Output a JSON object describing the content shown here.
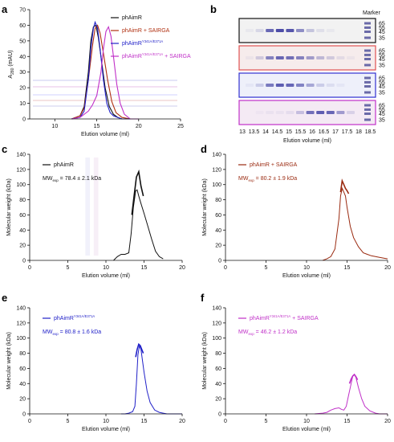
{
  "panel_letters": [
    "a",
    "b",
    "c",
    "d",
    "e",
    "f"
  ],
  "chart_data": [
    {
      "panel": "a",
      "type": "line",
      "xlabel": "Elution volume (ml)",
      "ylabel": "A280 (mAU)",
      "ylabel_main": "A",
      "ylabel_sub": "280",
      "ylabel_rest": " (mAU)",
      "xlim": [
        7,
        25
      ],
      "ylim": [
        0,
        70
      ],
      "xticks": [
        10,
        15,
        20,
        25
      ],
      "yticks": [
        0,
        10,
        20,
        30,
        40,
        50,
        60,
        70
      ],
      "legend": [
        {
          "main": "phAimR",
          "sup": "",
          "rest": "",
          "color": "#111111"
        },
        {
          "main": "phAimR + SAIRGA",
          "sup": "",
          "rest": "",
          "color": "#b03010"
        },
        {
          "main": "phAimR",
          "sup": "Y341A/E371A",
          "rest": "",
          "color": "#2020c8"
        },
        {
          "main": "phAimR",
          "sup": "Y341A/E371A",
          "rest": " + SAIRGA",
          "color": "#c030c8"
        }
      ],
      "series": [
        {
          "color": "#111111",
          "x": [
            12,
            13,
            13.5,
            14,
            14.3,
            14.6,
            14.9,
            15.2,
            15.5,
            16,
            16.5,
            17,
            17.5,
            18,
            19,
            20
          ],
          "y": [
            0,
            2,
            8,
            30,
            50,
            59,
            60,
            52,
            40,
            20,
            8,
            3,
            1,
            0,
            0,
            0
          ]
        },
        {
          "color": "#b03010",
          "x": [
            12,
            13,
            13.5,
            14,
            14.5,
            14.8,
            15.1,
            15.4,
            15.8,
            16.3,
            16.8,
            17.3,
            18,
            19,
            20
          ],
          "y": [
            0,
            2,
            7,
            25,
            47,
            58,
            60,
            55,
            42,
            25,
            11,
            4,
            1,
            0,
            0
          ]
        },
        {
          "color": "#2020c8",
          "x": [
            12,
            13,
            13.5,
            14,
            14.3,
            14.6,
            14.8,
            15.1,
            15.4,
            15.8,
            16.2,
            16.6,
            17,
            17.5,
            18,
            19,
            20
          ],
          "y": [
            0,
            1,
            5,
            25,
            45,
            58,
            62,
            58,
            45,
            25,
            10,
            4,
            2,
            1,
            0,
            0,
            0
          ]
        },
        {
          "color": "#c030c8",
          "x": [
            12,
            13,
            13.5,
            14,
            14.5,
            15,
            15.5,
            15.8,
            16.1,
            16.4,
            16.7,
            17,
            17.4,
            17.8,
            18.3,
            19,
            20
          ],
          "y": [
            0,
            1,
            3,
            5,
            9,
            15,
            30,
            45,
            56,
            59,
            53,
            40,
            22,
            10,
            3,
            0,
            0
          ]
        }
      ]
    },
    {
      "panel": "b",
      "type": "table",
      "marker_label": "Marker",
      "marker_kda": [
        "65",
        "55",
        "45",
        "35"
      ],
      "xlabel": "Elution volume (ml)",
      "lanes": [
        "13",
        "13.5",
        "14",
        "14.5",
        "15",
        "15.5",
        "16",
        "16.5",
        "17",
        "17.5",
        "18",
        "18.5"
      ],
      "gels": [
        {
          "border": "#111111",
          "intensity": [
            0.05,
            0.15,
            0.75,
            0.9,
            0.85,
            0.55,
            0.25,
            0.1,
            0.05,
            0,
            0,
            0
          ]
        },
        {
          "border": "#e05050",
          "intensity": [
            0.05,
            0.2,
            0.6,
            0.75,
            0.7,
            0.6,
            0.45,
            0.3,
            0.2,
            0.1,
            0.05,
            0
          ]
        },
        {
          "border": "#3030d0",
          "intensity": [
            0.05,
            0.2,
            0.65,
            0.8,
            0.75,
            0.6,
            0.4,
            0.2,
            0.1,
            0.05,
            0,
            0
          ]
        },
        {
          "border": "#c030c8",
          "intensity": [
            0,
            0.03,
            0.05,
            0.05,
            0.08,
            0.25,
            0.7,
            0.8,
            0.75,
            0.45,
            0.15,
            0
          ]
        }
      ]
    },
    {
      "panel": "c",
      "type": "line",
      "xlabel": "Elution volume (ml)",
      "ylabel": "Molecular weight (kDa)",
      "xlim": [
        0,
        20
      ],
      "ylim": [
        0,
        140
      ],
      "xticks": [
        0,
        5,
        10,
        15,
        20
      ],
      "yticks": [
        0,
        20,
        40,
        60,
        80,
        100,
        120,
        140
      ],
      "color": "#111111",
      "legend": {
        "main": "phAimR",
        "sup": "",
        "rest": ""
      },
      "mw_text": {
        "pre": "MW",
        "sub": "exp",
        "post": " = 78.4 ± 2.1 kDa"
      },
      "series": [
        {
          "name": "trace",
          "x": [
            11,
            11.5,
            12,
            12.5,
            13,
            13.3,
            13.6,
            13.9,
            14.1,
            14.3,
            14.6,
            15,
            15.5,
            16,
            16.5,
            17,
            17.5
          ],
          "y": [
            0,
            5,
            8,
            8,
            10,
            35,
            70,
            92,
            93,
            85,
            75,
            62,
            45,
            28,
            12,
            5,
            2
          ]
        },
        {
          "name": "mw",
          "x": [
            13.4,
            13.7,
            14.0,
            14.3,
            14.6,
            14.9
          ],
          "y": [
            60,
            85,
            110,
            117,
            98,
            85
          ]
        }
      ]
    },
    {
      "panel": "d",
      "type": "line",
      "xlabel": "Elution volume (ml)",
      "ylabel": "Molecular weight (kDa)",
      "xlim": [
        0,
        20
      ],
      "ylim": [
        0,
        140
      ],
      "xticks": [
        0,
        5,
        10,
        15,
        20
      ],
      "yticks": [
        0,
        20,
        40,
        60,
        80,
        100,
        120,
        140
      ],
      "color": "#9a2a10",
      "legend": {
        "main": "phAimR + SAIRGA",
        "sup": "",
        "rest": ""
      },
      "mw_text": {
        "pre": "MW",
        "sub": "exp",
        "post": " = 80.2 ± 1.9 kDa"
      },
      "series": [
        {
          "name": "trace",
          "x": [
            12,
            12.5,
            13,
            13.5,
            14,
            14.2,
            14.4,
            14.6,
            14.8,
            15,
            15.4,
            15.8,
            16.4,
            17,
            17.5,
            18,
            18.5,
            19,
            20
          ],
          "y": [
            0,
            2,
            5,
            15,
            55,
            85,
            95,
            90,
            85,
            70,
            45,
            30,
            18,
            10,
            8,
            6,
            5,
            4,
            2
          ]
        },
        {
          "name": "mw",
          "x": [
            14.2,
            14.4,
            14.6,
            14.8,
            15.0,
            15.2
          ],
          "y": [
            90,
            105,
            100,
            95,
            92,
            88
          ]
        }
      ]
    },
    {
      "panel": "e",
      "type": "line",
      "xlabel": "Elution volume (ml)",
      "ylabel": "Molecular weight (kDa)",
      "xlim": [
        0,
        20
      ],
      "ylim": [
        0,
        140
      ],
      "xticks": [
        0,
        5,
        10,
        15,
        20
      ],
      "yticks": [
        0,
        20,
        40,
        60,
        80,
        100,
        120,
        140
      ],
      "color": "#2020c8",
      "legend": {
        "main": "phAimR",
        "sup": "Y341A/E371A",
        "rest": ""
      },
      "mw_text": {
        "pre": "MW",
        "sub": "exp",
        "post": " = 80.8 ± 1.6 kDa"
      },
      "series": [
        {
          "name": "trace",
          "x": [
            12,
            12.5,
            13,
            13.5,
            13.8,
            14.0,
            14.2,
            14.4,
            14.6,
            14.8,
            15,
            15.4,
            15.8,
            16.4,
            17,
            17.5,
            18,
            19,
            20
          ],
          "y": [
            0,
            0,
            1,
            3,
            10,
            40,
            78,
            90,
            85,
            70,
            55,
            30,
            15,
            5,
            2,
            1,
            0,
            0,
            0
          ]
        },
        {
          "name": "mw",
          "x": [
            13.9,
            14.1,
            14.3,
            14.5,
            14.7,
            14.9
          ],
          "y": [
            75,
            85,
            92,
            90,
            85,
            80
          ]
        }
      ]
    },
    {
      "panel": "f",
      "type": "line",
      "xlabel": "Elution volume (ml)",
      "ylabel": "Molecular weight (kDa)",
      "xlim": [
        0,
        20
      ],
      "ylim": [
        0,
        140
      ],
      "xticks": [
        0,
        5,
        10,
        15,
        20
      ],
      "yticks": [
        0,
        20,
        40,
        60,
        80,
        100,
        120,
        140
      ],
      "color": "#c030c8",
      "legend": {
        "main": "phAimR",
        "sup": "Y341A/E371A",
        "rest": " + SAIRGA"
      },
      "mw_text": {
        "pre": "MW",
        "sub": "exp",
        "post": " = 46.2 ± 1.2 kDa"
      },
      "series": [
        {
          "name": "trace",
          "x": [
            11,
            12,
            12.5,
            13,
            13.5,
            14,
            14.3,
            14.6,
            14.9,
            15.2,
            15.5,
            15.7,
            15.9,
            16.1,
            16.4,
            16.8,
            17.2,
            17.8,
            18.5,
            19,
            20
          ],
          "y": [
            0,
            1,
            2,
            5,
            7,
            8,
            6,
            5,
            10,
            25,
            40,
            50,
            52,
            48,
            35,
            20,
            10,
            4,
            1,
            0,
            0
          ]
        },
        {
          "name": "mw",
          "x": [
            15.3,
            15.5,
            15.7,
            15.9,
            16.1,
            16.3
          ],
          "y": [
            40,
            46,
            50,
            52,
            49,
            45
          ]
        }
      ]
    }
  ]
}
